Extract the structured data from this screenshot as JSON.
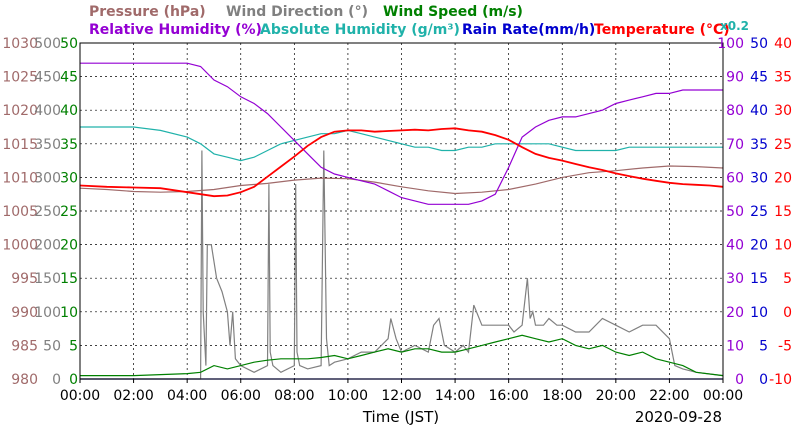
{
  "chart_data": {
    "type": "line",
    "xlabel": "Time (JST)",
    "date": "2020-09-28",
    "x_ticks": [
      "00:00",
      "02:00",
      "04:00",
      "06:00",
      "08:00",
      "10:00",
      "12:00",
      "14:00",
      "16:00",
      "18:00",
      "20:00",
      "22:00",
      "00:00"
    ],
    "xlim_hours": [
      0,
      24
    ],
    "grid": true,
    "legend_row1": [
      {
        "name": "Pressure (hPa)",
        "color": "#a06a6a"
      },
      {
        "name": "Wind Direction (°)",
        "color": "#808080"
      },
      {
        "name": "Wind Speed (m/s)",
        "color": "#008000"
      }
    ],
    "legend_row2": [
      {
        "name": "Relative Humidity (%)",
        "color": "#9400d3"
      },
      {
        "name": "Absolute Humidity (g/m³)",
        "color": "#20b2aa"
      },
      {
        "name": "Rain Rate(mm/h)",
        "color": "#0000cd"
      },
      {
        "name": "Temperature (°C)",
        "color": "#ff0000"
      },
      {
        "name": "x0.2",
        "color": "#20b2aa"
      }
    ],
    "axes": {
      "pressure": {
        "range": [
          980,
          1030
        ],
        "ticks": [
          "1030",
          "1025",
          "1020",
          "1015",
          "1010",
          "1005",
          "1000",
          "995",
          "990",
          "985",
          "980"
        ],
        "color": "#a06a6a"
      },
      "wind_dir": {
        "range": [
          0,
          500
        ],
        "ticks": [
          "500",
          "450",
          "400",
          "350",
          "300",
          "250",
          "200",
          "150",
          "100",
          "50",
          "0"
        ],
        "color": "#808080"
      },
      "wind_speed": {
        "range": [
          0,
          50
        ],
        "ticks": [
          "50",
          "45",
          "40",
          "35",
          "30",
          "25",
          "20",
          "15",
          "10",
          "5",
          "0"
        ],
        "color": "#008000"
      },
      "humidity": {
        "range": [
          0,
          100
        ],
        "ticks": [
          "100",
          "90",
          "80",
          "70",
          "60",
          "50",
          "40",
          "30",
          "20",
          "10",
          "0"
        ],
        "color": "#9400d3"
      },
      "rain": {
        "range": [
          0,
          50
        ],
        "ticks": [
          "50",
          "45",
          "40",
          "35",
          "30",
          "25",
          "20",
          "15",
          "10",
          "5",
          "0"
        ],
        "color": "#0000cd"
      },
      "temperature": {
        "range": [
          -10,
          40
        ],
        "ticks": [
          "40",
          "35",
          "30",
          "25",
          "20",
          "15",
          "10",
          "5",
          "0",
          "-5",
          "-10"
        ],
        "color": "#ff0000"
      }
    },
    "series": [
      {
        "name": "Pressure (hPa)",
        "color": "#a06a6a",
        "axis": "pressure",
        "x": [
          0,
          1,
          2,
          3,
          4,
          5,
          6,
          7,
          8,
          9,
          10,
          11,
          12,
          13,
          14,
          15,
          16,
          17,
          18,
          19,
          20,
          21,
          22,
          23,
          24
        ],
        "y": [
          1008.4,
          1008.2,
          1007.9,
          1007.8,
          1007.9,
          1008.2,
          1008.8,
          1009.1,
          1009.6,
          1009.9,
          1009.8,
          1009.3,
          1008.6,
          1008.0,
          1007.6,
          1007.8,
          1008.2,
          1009.0,
          1010.0,
          1010.7,
          1011.0,
          1011.4,
          1011.7,
          1011.6,
          1011.4
        ]
      },
      {
        "name": "Relative Humidity (%)",
        "color": "#9400d3",
        "axis": "humidity",
        "x": [
          0,
          1,
          2,
          3,
          4,
          4.5,
          5,
          5.5,
          6,
          6.5,
          7,
          7.5,
          8,
          8.5,
          9,
          9.5,
          10,
          10.5,
          11,
          11.5,
          12,
          12.5,
          13,
          13.5,
          14,
          14.5,
          15,
          15.5,
          16,
          16.5,
          17,
          17.5,
          18,
          18.5,
          19,
          19.5,
          20,
          20.5,
          21,
          21.5,
          22,
          22.5,
          23,
          23.5,
          24
        ],
        "y": [
          94,
          94,
          94,
          94,
          94,
          93,
          89,
          87,
          84,
          82,
          79,
          75,
          71,
          67,
          63,
          61,
          60,
          59,
          58,
          56,
          54,
          53,
          52,
          52,
          52,
          52,
          53,
          55,
          63,
          72,
          75,
          77,
          78,
          78,
          79,
          80,
          82,
          83,
          84,
          85,
          85,
          86,
          86,
          86,
          86
        ]
      },
      {
        "name": "Absolute Humidity (g/m³)",
        "color": "#20b2aa",
        "axis": "humidity",
        "x": [
          0,
          1,
          2,
          3,
          4,
          4.5,
          5,
          5.5,
          6,
          6.5,
          7,
          7.5,
          8,
          8.5,
          9,
          9.5,
          10,
          10.5,
          11,
          11.5,
          12,
          12.5,
          13,
          13.5,
          14,
          14.5,
          15,
          15.5,
          16,
          16.5,
          17,
          17.5,
          18,
          18.5,
          19,
          19.5,
          20,
          20.5,
          21,
          21.5,
          22,
          22.5,
          23,
          23.5,
          24
        ],
        "y": [
          75,
          75,
          75,
          74,
          72,
          70,
          67,
          66,
          65,
          66,
          68,
          70,
          71,
          72,
          73,
          73,
          74,
          73,
          72,
          71,
          70,
          69,
          69,
          68,
          68,
          69,
          69,
          70,
          70,
          70,
          70,
          70,
          69,
          68,
          68,
          68,
          68,
          69,
          69,
          69,
          69,
          69,
          69,
          69,
          69
        ]
      },
      {
        "name": "Temperature (°C)",
        "color": "#ff0000",
        "axis": "temperature",
        "x": [
          0,
          1,
          2,
          3,
          4,
          4.5,
          5,
          5.5,
          6,
          6.5,
          7,
          7.5,
          8,
          8.5,
          9,
          9.5,
          10,
          10.5,
          11,
          11.5,
          12,
          12.5,
          13,
          13.5,
          14,
          14.5,
          15,
          15.5,
          16,
          16.5,
          17,
          17.5,
          18,
          18.5,
          19,
          19.5,
          20,
          20.5,
          21,
          21.5,
          22,
          22.5,
          23,
          23.5,
          24
        ],
        "y": [
          18.8,
          18.6,
          18.5,
          18.4,
          17.8,
          17.5,
          17.2,
          17.3,
          17.8,
          18.6,
          20.1,
          21.6,
          23.1,
          24.7,
          26.0,
          26.8,
          27.0,
          27.0,
          26.8,
          26.9,
          27.0,
          27.1,
          27.0,
          27.2,
          27.3,
          27.0,
          26.8,
          26.3,
          25.6,
          24.5,
          23.5,
          22.9,
          22.5,
          22.0,
          21.5,
          21.1,
          20.6,
          20.2,
          19.8,
          19.5,
          19.2,
          19.0,
          18.9,
          18.8,
          18.6
        ]
      },
      {
        "name": "Wind Direction (°)",
        "color": "#808080",
        "axis": "wind_dir",
        "x": [
          0,
          4.5,
          4.55,
          4.6,
          4.7,
          4.75,
          4.9,
          5.1,
          5.3,
          5.5,
          5.6,
          5.7,
          5.8,
          6.0,
          6.5,
          7.0,
          7.05,
          7.1,
          7.2,
          7.5,
          8.0,
          8.05,
          8.1,
          8.2,
          8.5,
          9.0,
          9.1,
          9.2,
          9.3,
          9.5,
          10,
          10.5,
          11,
          11.5,
          11.6,
          11.8,
          12,
          12.5,
          13,
          13.2,
          13.4,
          13.6,
          14,
          14.3,
          14.5,
          14.7,
          15,
          15.5,
          16,
          16.2,
          16.5,
          16.7,
          16.8,
          16.9,
          17,
          17.3,
          17.5,
          17.8,
          18,
          18.5,
          19,
          19.5,
          20,
          20.5,
          21,
          21.5,
          22,
          22.2,
          22.5,
          23,
          24
        ],
        "y": [
          0,
          0,
          340,
          100,
          20,
          200,
          200,
          150,
          130,
          100,
          50,
          100,
          30,
          20,
          10,
          20,
          290,
          40,
          20,
          10,
          20,
          290,
          40,
          20,
          15,
          20,
          340,
          60,
          20,
          25,
          30,
          40,
          40,
          60,
          90,
          60,
          40,
          50,
          40,
          80,
          90,
          50,
          40,
          50,
          40,
          110,
          80,
          80,
          80,
          70,
          80,
          150,
          90,
          100,
          80,
          80,
          90,
          80,
          80,
          70,
          70,
          90,
          80,
          70,
          80,
          80,
          60,
          20,
          15,
          10,
          5
        ]
      },
      {
        "name": "Wind Speed (m/s)",
        "color": "#008000",
        "axis": "wind_speed",
        "x": [
          0,
          2,
          4,
          4.5,
          5,
          5.5,
          6,
          6.5,
          7,
          7.5,
          8,
          8.5,
          9,
          9.5,
          10,
          10.5,
          11,
          11.5,
          12,
          12.5,
          13,
          13.5,
          14,
          14.5,
          15,
          15.5,
          16,
          16.5,
          17,
          17.5,
          18,
          18.5,
          19,
          19.5,
          20,
          20.5,
          21,
          21.5,
          22,
          22.5,
          23,
          24
        ],
        "y": [
          0.5,
          0.5,
          0.8,
          1,
          2,
          1.5,
          2,
          2.5,
          2.8,
          3,
          3,
          3,
          3.2,
          3.5,
          3,
          3.5,
          4,
          4.5,
          4,
          4.5,
          4.5,
          4,
          4,
          4.5,
          5,
          5.5,
          6,
          6.5,
          6,
          5.5,
          6,
          5,
          4.5,
          5,
          4,
          3.5,
          4,
          3,
          2.5,
          2,
          1,
          0.5
        ]
      },
      {
        "name": "Rain Rate(mm/h)",
        "color": "#0000cd",
        "axis": "rain",
        "x": [
          0,
          24
        ],
        "y": [
          0,
          0
        ]
      }
    ]
  }
}
